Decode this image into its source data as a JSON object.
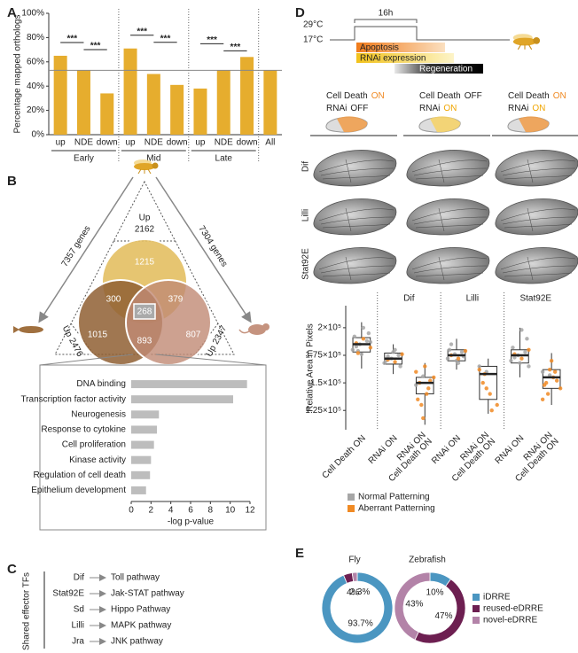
{
  "panel_labels": [
    "A",
    "B",
    "C",
    "D",
    "E"
  ],
  "chart_data": [
    {
      "type": "bar",
      "ylabel": "Percentage mapped orthologs",
      "color": "#e6ad2e",
      "ylim": [
        0,
        100
      ],
      "yticks": [
        {
          "value": 0,
          "label": "0%"
        },
        {
          "value": 20,
          "label": "20%"
        },
        {
          "value": 40,
          "label": "40%"
        },
        {
          "value": 60,
          "label": "60%"
        },
        {
          "value": 80,
          "label": "80%"
        },
        {
          "value": 100,
          "label": "100%"
        }
      ],
      "groups": [
        {
          "name": "Early",
          "categories": [
            "up",
            "NDE",
            "down"
          ],
          "values": [
            65,
            53,
            34
          ],
          "significance": [
            "***",
            "***"
          ]
        },
        {
          "name": "Mid",
          "categories": [
            "up",
            "NDE",
            "down"
          ],
          "values": [
            71,
            50,
            41
          ],
          "significance": [
            "***",
            "***"
          ]
        },
        {
          "name": "Late",
          "categories": [
            "up",
            "NDE",
            "down"
          ],
          "values": [
            38,
            53,
            64
          ],
          "significance": [
            "***",
            "***"
          ]
        },
        {
          "name": null,
          "categories": [
            "All"
          ],
          "values": [
            53
          ]
        }
      ]
    },
    {
      "type": "hbar",
      "color": "#bdbdbd",
      "categories": [
        "DNA binding",
        "Transcription factor activity",
        "Neurogenesis",
        "Response to cytokine",
        "Cell proliferation",
        "Kinase activity",
        "Regulation of cell death",
        "Epithelium development"
      ],
      "values": [
        11.7,
        10.3,
        2.8,
        2.6,
        2.3,
        2.0,
        1.9,
        1.5
      ],
      "xlim": [
        0,
        12
      ],
      "xticks": [
        0,
        2,
        4,
        6,
        8,
        10,
        12
      ],
      "xlabel": "-log p-value"
    },
    {
      "type": "box",
      "ylabel": "Relative Area in Pixels",
      "ylim": [
        107500,
        220000
      ],
      "yticks": [
        {
          "value": 125000,
          "label": "1.25×10⁵"
        },
        {
          "value": 150000,
          "label": "1.5×10⁵"
        },
        {
          "value": 175000,
          "label": "1.75×10⁵"
        },
        {
          "value": 200000,
          "label": "2×10⁵"
        }
      ],
      "legend": [
        {
          "name": "Normal Patterning",
          "color": "#a6a6a6"
        },
        {
          "name": "Aberrant Patterning",
          "color": "#f08a24"
        }
      ],
      "facets": [
        {
          "name": null,
          "boxes": [
            {
              "category": [
                "Cell Death ON"
              ],
              "low": 163000,
              "q1": 178000,
              "median": 185000,
              "q3": 191000,
              "high": 205000,
              "points": [
                [
                  180000,
                  185000,
                  188000,
                  192000,
                  176000,
                  195000,
                  183000,
                  200000,
                  187000,
                  179000
                ],
                [
                  186000,
                  190000,
                  182000,
                  177000
                ]
              ]
            }
          ]
        },
        {
          "name": "Dif",
          "boxes": [
            {
              "category": [
                "RNAi ON"
              ],
              "low": 158000,
              "q1": 167000,
              "median": 172000,
              "q3": 177000,
              "high": 185000,
              "points": [
                [
                  168000,
                  172000,
                  175000,
                  170000,
                  178000,
                  165000,
                  174000,
                  180000
                ],
                [
                  171000,
                  169000,
                  176000
                ]
              ]
            },
            {
              "category": [
                "RNAi ON",
                "Cell Death ON"
              ],
              "low": 112000,
              "q1": 140000,
              "median": 150000,
              "q3": 155000,
              "high": 168000,
              "points": [
                [
                  148000,
                  156000
                ],
                [
                  150000,
                  140000,
                  155000,
                  130000,
                  145000,
                  160000,
                  118000,
                  152000,
                  135000,
                  165000
                ]
              ]
            }
          ]
        },
        {
          "name": "Lilli",
          "boxes": [
            {
              "category": [
                "RNAi ON"
              ],
              "low": 162000,
              "q1": 170000,
              "median": 175000,
              "q3": 180000,
              "high": 190000,
              "points": [
                [
                  172000,
                  176000,
                  178000,
                  180000,
                  170000,
                  174000,
                  185000,
                  168000
                ],
                [
                  175000,
                  172000,
                  179000
                ]
              ]
            },
            {
              "category": [
                "RNAi ON",
                "Cell Death ON"
              ],
              "low": 122000,
              "q1": 135000,
              "median": 158000,
              "q3": 165000,
              "high": 172000,
              "points": [
                [
                  165000,
                  160000
                ],
                [
                  150000,
                  140000,
                  130000,
                  158000,
                  125000,
                  162000,
                  145000
                ]
              ]
            }
          ]
        },
        {
          "name": "Stat92E",
          "boxes": [
            {
              "category": [
                "RNAi ON"
              ],
              "low": 155000,
              "q1": 168000,
              "median": 175000,
              "q3": 180000,
              "high": 200000,
              "points": [
                [
                  170000,
                  175000,
                  178000,
                  182000,
                  168000,
                  190000,
                  173000,
                  198000,
                  165000
                ],
                [
                  176000,
                  172000,
                  180000
                ]
              ]
            },
            {
              "category": [
                "RNAi ON",
                "Cell Death ON"
              ],
              "low": 130000,
              "q1": 145000,
              "median": 155000,
              "q3": 162000,
              "high": 177000,
              "points": [
                [
                  160000,
                  157000
                ],
                [
                  150000,
                  155000,
                  145000,
                  140000,
                  160000,
                  135000,
                  162000,
                  152000,
                  148000,
                  170000
                ]
              ]
            }
          ]
        }
      ]
    },
    {
      "type": "donut",
      "categories": [
        "iDRRE",
        "reused-eDRRE",
        "novel-eDRRE"
      ],
      "colors": [
        "#4b96c1",
        "#6d1f51",
        "#b383a8"
      ],
      "series": [
        {
          "name": "Fly",
          "values": [
            93.7,
            4,
            2.3
          ],
          "value_labels": [
            "93.7%",
            "4%",
            "2.3%"
          ]
        },
        {
          "name": "Zebrafish",
          "values": [
            10,
            47,
            43
          ],
          "value_labels": [
            "10%",
            "47%",
            "43%"
          ]
        }
      ]
    }
  ],
  "panel_b": {
    "corners": [
      {
        "label": "Up",
        "count": 2162
      },
      {
        "label": "Up",
        "count": 2476
      },
      {
        "label": "Up",
        "count": 2347
      }
    ],
    "edges": [
      "7357 genes",
      "7304 genes"
    ],
    "venn": {
      "fly": 1215,
      "fly_fish": 300,
      "fly_mouse": 379,
      "all": 268,
      "fish": 1015,
      "fish_mouse": 893,
      "mouse": 807
    }
  },
  "panel_c": {
    "title": "Shared effector TFs",
    "rows": [
      {
        "tf": "Dif",
        "pathway": "Toll pathway"
      },
      {
        "tf": "Stat92E",
        "pathway": "Jak-STAT pathway"
      },
      {
        "tf": "Sd",
        "pathway": "Hippo Pathway"
      },
      {
        "tf": "Lilli",
        "pathway": "MAPK pathway"
      },
      {
        "tf": "Jra",
        "pathway": "JNK pathway"
      }
    ]
  },
  "panel_d": {
    "temps": [
      "29°C",
      "17°C"
    ],
    "duration": "16h",
    "bars": [
      "Apoptosis",
      "RNAi expression",
      "Regeneration"
    ],
    "conditions": [
      [
        {
          "text": "Cell Death",
          "state": "ON",
          "color": "#f08a24"
        },
        {
          "text": "RNAi",
          "state": "OFF",
          "color": "#222222"
        }
      ],
      [
        {
          "text": "Cell Death",
          "state": "OFF",
          "color": "#222222"
        },
        {
          "text": "RNAi",
          "state": "ON",
          "color": "#f0a500"
        }
      ],
      [
        {
          "text": "Cell Death",
          "state": "ON",
          "color": "#f08a24"
        },
        {
          "text": "RNAi",
          "state": "ON",
          "color": "#f0a500"
        }
      ]
    ],
    "rows": [
      "Dif",
      "Lilli",
      "Stat92E"
    ]
  }
}
